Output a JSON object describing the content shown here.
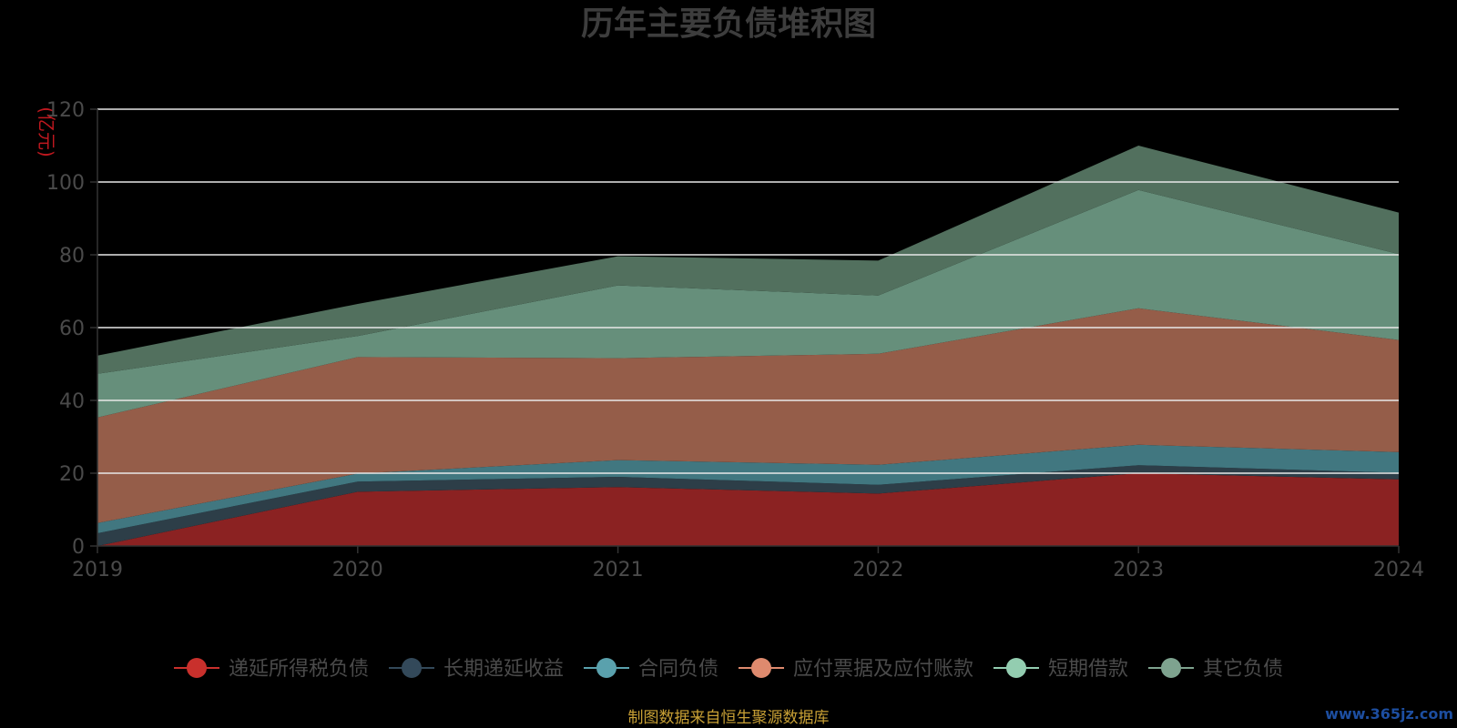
{
  "chart_data": {
    "type": "area",
    "stacked": true,
    "title": "历年主要负债堆积图",
    "ylabel": "(亿元)",
    "x": [
      "2019",
      "2020",
      "2021",
      "2022",
      "2023",
      "2024"
    ],
    "ylim": [
      0,
      120
    ],
    "yticks": [
      0,
      20,
      40,
      60,
      80,
      100,
      120
    ],
    "grid": true,
    "legend_position": "bottom",
    "series": [
      {
        "name": "递延所得税负债",
        "color": "#8b2222",
        "marker_color": "#c9302c",
        "values": [
          0.0,
          14.9,
          16.2,
          14.4,
          20.0,
          18.3
        ]
      },
      {
        "name": "长期递延收益",
        "color": "#2d3e48",
        "marker_color": "#33495a",
        "values": [
          3.5,
          2.8,
          2.8,
          2.4,
          2.2,
          1.8
        ]
      },
      {
        "name": "合同负债",
        "color": "#417780",
        "marker_color": "#5aa1ad",
        "values": [
          2.8,
          2.2,
          4.6,
          5.5,
          5.6,
          5.7
        ]
      },
      {
        "name": "应付票据及应付账款",
        "color": "#955d49",
        "marker_color": "#de8a6e",
        "values": [
          29.0,
          32.0,
          28.0,
          30.5,
          37.5,
          30.8
        ]
      },
      {
        "name": "短期借款",
        "color": "#668f7b",
        "marker_color": "#93cdb0",
        "values": [
          12.0,
          5.8,
          20.0,
          16.0,
          32.5,
          23.6
        ]
      },
      {
        "name": "其它负债",
        "color": "#52705e",
        "marker_color": "#7ea38f",
        "values": [
          5.0,
          8.8,
          8.0,
          9.6,
          12.2,
          11.4
        ]
      }
    ]
  },
  "footer": {
    "source": "制图数据来自恒生聚源数据库",
    "watermark": "www.365jz.com"
  }
}
